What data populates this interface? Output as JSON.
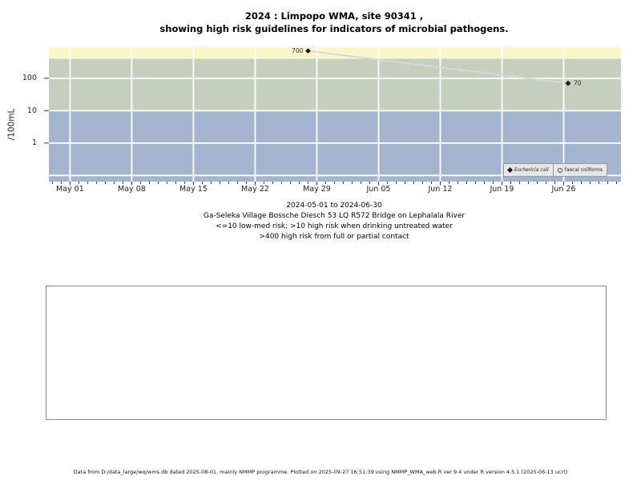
{
  "chart_data": {
    "type": "line",
    "title_lines": [
      "2024 : Limpopo WMA, site 90341 ,",
      "showing high risk guidelines for indicators of microbial pathogens."
    ],
    "ylabel": "/100mL",
    "y_scale": "log10",
    "y_ticks": [
      {
        "value": 1,
        "label": "1"
      },
      {
        "value": 10,
        "label": "10"
      },
      {
        "value": 100,
        "label": "100"
      }
    ],
    "y_gridline_values": [
      100,
      10,
      1,
      0.1
    ],
    "y_axis_range_log10": [
      -1.19,
      2.96
    ],
    "x_day0": "2024-05-01",
    "x_axis_range_days": [
      -2.4,
      62.5
    ],
    "x_minor_ticks": "daily",
    "x_ticks": [
      {
        "label": "May 01",
        "day": 0
      },
      {
        "label": "May 08",
        "day": 7
      },
      {
        "label": "May 15",
        "day": 14
      },
      {
        "label": "May 22",
        "day": 21
      },
      {
        "label": "May 29",
        "day": 28
      },
      {
        "label": "Jun 05",
        "day": 35
      },
      {
        "label": "Jun 12",
        "day": 42
      },
      {
        "label": "Jun 19",
        "day": 49
      },
      {
        "label": "Jun 26",
        "day": 56
      }
    ],
    "series": [
      {
        "name": "Eschericia coli",
        "marker": "filled-diamond",
        "points": [
          {
            "day": 27,
            "value": 700,
            "label": "700",
            "label_side": "left"
          },
          {
            "day": 56.5,
            "value": 70,
            "label": "70",
            "label_side": "right"
          }
        ]
      },
      {
        "name": "faecal coliforms",
        "marker": "open-circle",
        "points": []
      }
    ],
    "legend": [
      {
        "marker": "filled-diamond",
        "label": "Eschericia coli",
        "italic": true
      },
      {
        "marker": "open-circle",
        "label": "faecal coliforms",
        "italic": false
      }
    ],
    "risk_bands": [
      {
        "lo": 400,
        "hi": null,
        "color": "#FAF6CB"
      },
      {
        "lo": 10,
        "hi": 400,
        "color": "#C6CEBD"
      },
      {
        "lo": null,
        "hi": 10,
        "color": "#A4B3CE"
      }
    ],
    "colors": {
      "line": "#D8D8D8",
      "marker": "#1A1A1A",
      "gridline": "#FFFFFF",
      "tick": "#333333",
      "legend_bg": "#E6E6E6"
    },
    "caption_lines": [
      "2024-05-01 to 2024-06-30",
      "Ga-Seleka Village Bossche Diesch 53 LQ R572 Bridge on Lephalala River",
      "<=10 low-med risk; >10 high risk when drinking untreated water",
      ">400 high risk from full or partial contact"
    ]
  },
  "footer_note": "Data from D:/data_large/wq/wms.db dated 2025-08-01, mainly NMMP programme. Plotted on 2025-09-27 16:51:39 using NMMP_WMA_web.R ver 9.4 under R version 4.5.1 (2025-06-13 ucrt)"
}
